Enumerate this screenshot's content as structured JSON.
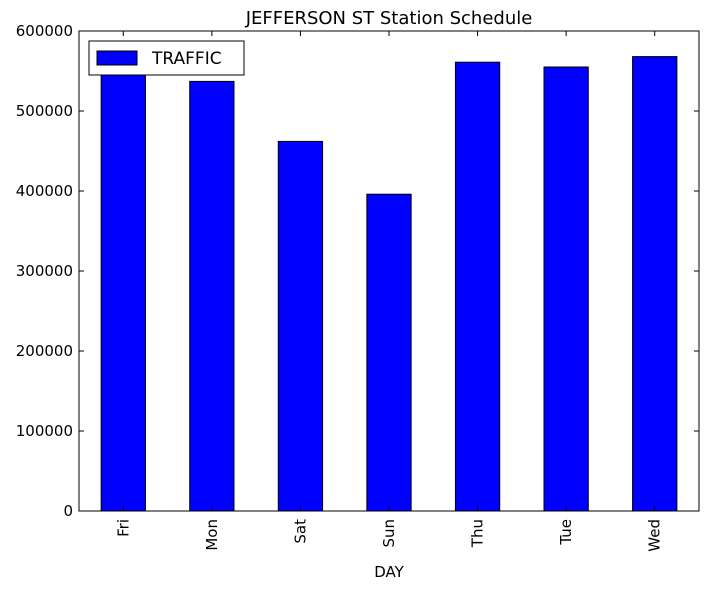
{
  "chart_data": {
    "type": "bar",
    "title": "JEFFERSON ST Station Schedule",
    "xlabel": "DAY",
    "ylabel": "",
    "categories": [
      "Fri",
      "Mon",
      "Sat",
      "Sun",
      "Thu",
      "Tue",
      "Wed"
    ],
    "series": [
      {
        "name": "TRAFFIC",
        "color": "#0000ff",
        "values": [
          549000,
          537000,
          462000,
          396000,
          561000,
          555000,
          568000
        ]
      }
    ],
    "ylim": [
      0,
      600000
    ],
    "yticks": [
      0,
      100000,
      200000,
      300000,
      400000,
      500000,
      600000
    ],
    "ytick_labels": [
      "0",
      "100000",
      "200000",
      "300000",
      "400000",
      "500000",
      "600000"
    ],
    "grid": false,
    "legend_position": "top-left"
  }
}
